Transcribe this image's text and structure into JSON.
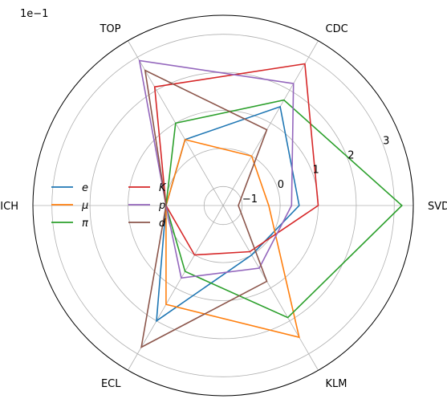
{
  "chart_data": {
    "type": "radar",
    "scale_label": "1e−1",
    "axes": [
      "SVD",
      "CDC",
      "TOP",
      "ARICH",
      "ECL",
      "KLM"
    ],
    "rlim": [
      -1.5,
      3.5
    ],
    "rticks": [
      -1,
      0,
      1,
      2,
      3
    ],
    "rtick_labels": [
      "−1",
      "0",
      "1",
      "2",
      "3"
    ],
    "grid": true,
    "legend": {
      "placement": "center-left",
      "columns": 2
    },
    "series": [
      {
        "name": "e",
        "color": "#1f77b4",
        "values": [
          0.5,
          1.5,
          0.5,
          0,
          2.0,
          0.0
        ]
      },
      {
        "name": "μ",
        "color": "#ff7f0e",
        "values": [
          -0.3,
          0.0,
          0.5,
          0,
          1.5,
          2.5
        ]
      },
      {
        "name": "π",
        "color": "#2ca02c",
        "values": [
          3.2,
          1.7,
          1.0,
          0,
          0.5,
          1.9
        ]
      },
      {
        "name": "K",
        "color": "#d62728",
        "values": [
          1.0,
          2.8,
          2.1,
          0,
          0.0,
          -0.1
        ]
      },
      {
        "name": "p",
        "color": "#9467bd",
        "values": [
          0.3,
          2.2,
          2.9,
          0,
          0.7,
          0.4
        ]
      },
      {
        "name": "d",
        "color": "#8c564b",
        "values": [
          -1.1,
          0.8,
          2.6,
          0,
          2.8,
          0.8
        ]
      }
    ]
  }
}
